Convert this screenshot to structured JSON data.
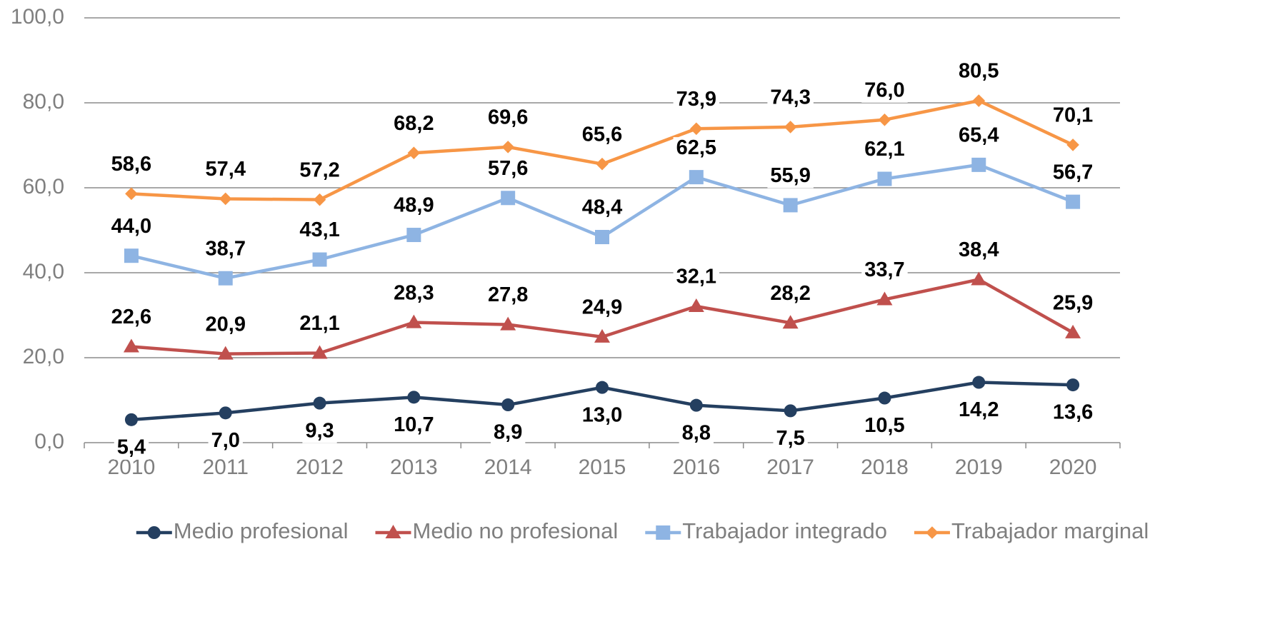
{
  "chart_data": {
    "type": "line",
    "categories": [
      "2010",
      "2011",
      "2012",
      "2013",
      "2014",
      "2015",
      "2016",
      "2017",
      "2018",
      "2019",
      "2020"
    ],
    "ylim": [
      0,
      100
    ],
    "yticks": [
      {
        "value": 0,
        "label": "0,0"
      },
      {
        "value": 20,
        "label": "20,0"
      },
      {
        "value": 40,
        "label": "40,0"
      },
      {
        "value": 60,
        "label": "60,0"
      },
      {
        "value": 80,
        "label": "80,0"
      },
      {
        "value": 100,
        "label": "100,0"
      }
    ],
    "grid": true,
    "legend": "bottom",
    "series": [
      {
        "name": "Medio profesional",
        "color": "#243f60",
        "marker": "circle",
        "values": [
          5.4,
          7.0,
          9.3,
          10.7,
          8.9,
          13.0,
          8.8,
          7.5,
          10.5,
          14.2,
          13.6
        ],
        "value_labels": [
          "5,4",
          "7,0",
          "9,3",
          "10,7",
          "8,9",
          "13,0",
          "8,8",
          "7,5",
          "10,5",
          "14,2",
          "13,6"
        ]
      },
      {
        "name": "Medio no profesional",
        "color": "#c0504d",
        "marker": "triangle",
        "values": [
          22.6,
          20.9,
          21.1,
          28.3,
          27.8,
          24.9,
          32.1,
          28.2,
          33.7,
          38.4,
          25.9
        ],
        "value_labels": [
          "22,6",
          "20,9",
          "21,1",
          "28,3",
          "27,8",
          "24,9",
          "32,1",
          "28,2",
          "33,7",
          "38,4",
          "25,9"
        ]
      },
      {
        "name": "Trabajador integrado",
        "color": "#8eb4e3",
        "marker": "square",
        "values": [
          44.0,
          38.7,
          43.1,
          48.9,
          57.6,
          48.4,
          62.5,
          55.9,
          62.1,
          65.4,
          56.7
        ],
        "value_labels": [
          "44,0",
          "38,7",
          "43,1",
          "48,9",
          "57,6",
          "48,4",
          "62,5",
          "55,9",
          "62,1",
          "65,4",
          "56,7"
        ]
      },
      {
        "name": "Trabajador marginal",
        "color": "#f79646",
        "marker": "diamond",
        "values": [
          58.6,
          57.4,
          57.2,
          68.2,
          69.6,
          65.6,
          73.9,
          74.3,
          76.0,
          80.5,
          70.1
        ],
        "value_labels": [
          "58,6",
          "57,4",
          "57,2",
          "68,2",
          "69,6",
          "65,6",
          "73,9",
          "74,3",
          "76,0",
          "80,5",
          "70,1"
        ]
      }
    ]
  }
}
